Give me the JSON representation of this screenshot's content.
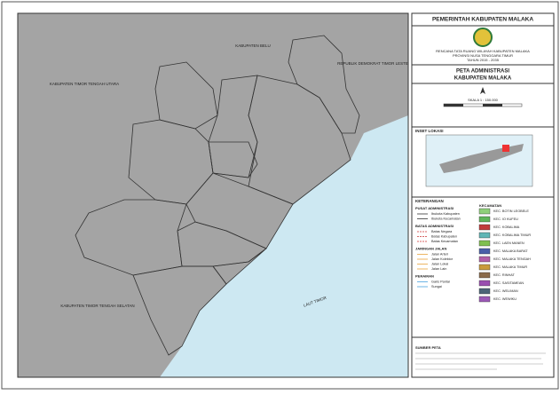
{
  "map": {
    "labels": [
      "KABUPATEN BELU",
      "REPUBLIK DEMOKRAT TIMOR LESTE",
      "KABUPATEN TIMOR TENGAH UTARA",
      "KABUPATEN TIMOR TENGAH SELATAN",
      "LAUT TIMOR"
    ]
  },
  "panel": {
    "header": "PEMERINTAH KABUPATEN MALAKA",
    "plan": [
      "RENCANA TATA RUANG WILAYAH KABUPATEN MALAKA",
      "PROVINSI NUSA TENGGARA TIMUR",
      "TAHUN 2015 - 2035"
    ],
    "title": "PETA ADMINISTRASI",
    "subtitle": "KABUPATEN MALAKA",
    "scale": "SKALA 1 : 150.000",
    "inset": "INSET LOKASI",
    "legend_title": "KETERANGAN",
    "groups": [
      {
        "title": "PUSAT ADMINISTRASI",
        "items": [
          "Ibukota Kabupaten",
          "Ibukota Kecamatan"
        ]
      },
      {
        "title": "BATAS ADMINISTRASI",
        "items": [
          "Batas Negara",
          "Batas Kabupaten",
          "Batas Kecamatan"
        ]
      },
      {
        "title": "JARINGAN JALAN",
        "items": [
          "Jalan Arteri",
          "Jalan Kolektor",
          "Jalan Lokal",
          "Jalan Lain"
        ]
      },
      {
        "title": "PERAIRAN",
        "items": [
          "Garis Pantai",
          "Sungai"
        ]
      }
    ],
    "kecamatan_title": "KECAMATAN",
    "kecamatan": [
      {
        "name": "KEC. BOTIN LEOBELE",
        "color": "#8fcf7a"
      },
      {
        "name": "KEC. IO KUFEU",
        "color": "#5fb55a"
      },
      {
        "name": "KEC. KOBALIMA",
        "color": "#c0393b"
      },
      {
        "name": "KEC. KOBALIMA TIMUR",
        "color": "#5fb5b5"
      },
      {
        "name": "KEC. LAEN MANEN",
        "color": "#7fbf4f"
      },
      {
        "name": "KEC. MALAKA BARAT",
        "color": "#4a5fa8"
      },
      {
        "name": "KEC. MALAKA TENGAH",
        "color": "#b25fa8"
      },
      {
        "name": "KEC. MALAKA TIMUR",
        "color": "#c99a3a"
      },
      {
        "name": "KEC. RINHAT",
        "color": "#8a6a4a"
      },
      {
        "name": "KEC. SASITAMEAN",
        "color": "#9a4fb0"
      },
      {
        "name": "KEC. WELIMAN",
        "color": "#4b6477"
      },
      {
        "name": "KEC. WEWIKU",
        "color": "#9b59b6"
      }
    ],
    "source": "SUMBER PETA"
  }
}
